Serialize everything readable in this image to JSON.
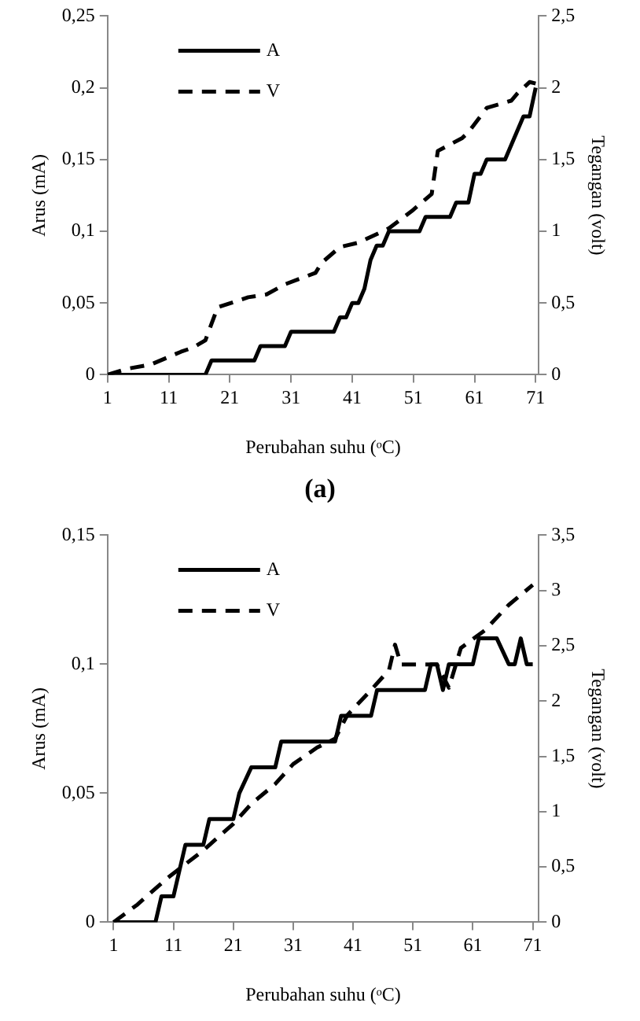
{
  "chart_data": [
    {
      "type": "line",
      "xlabel": "Perubahan suhu (ᵒC)",
      "ylabel": "Arus (mA)",
      "y2label": "Tegangan (volt)",
      "annotations": [
        "(a)"
      ],
      "xlim": [
        1,
        71.5
      ],
      "xticks": [
        1,
        11,
        21,
        31,
        41,
        51,
        61,
        71
      ],
      "ylim": [
        0,
        0.25
      ],
      "yticks": [
        {
          "value": 0,
          "label": "0"
        },
        {
          "value": 0.05,
          "label": "0,05"
        },
        {
          "value": 0.1,
          "label": "0,1"
        },
        {
          "value": 0.15,
          "label": "0,15"
        },
        {
          "value": 0.2,
          "label": "0,2"
        },
        {
          "value": 0.25,
          "label": "0,25"
        }
      ],
      "y2lim": [
        0,
        2.5
      ],
      "y2ticks": [
        {
          "value": 0,
          "label": "0"
        },
        {
          "value": 0.5,
          "label": "0,5"
        },
        {
          "value": 1,
          "label": "1"
        },
        {
          "value": 1.5,
          "label": "1,5"
        },
        {
          "value": 2,
          "label": "2"
        },
        {
          "value": 2.5,
          "label": "2,5"
        }
      ],
      "grid": false,
      "legend": "top left",
      "marker": "none",
      "series": [
        {
          "name": "A",
          "color": "#000000",
          "line_style": "solid",
          "x": [
            1,
            17,
            18,
            25,
            26,
            30,
            31,
            38,
            39,
            40,
            41,
            42,
            43,
            44,
            45,
            46,
            47,
            52,
            53,
            57,
            58,
            60,
            61,
            62,
            63,
            66,
            69,
            70,
            71
          ],
          "values": [
            0,
            0,
            0.01,
            0.01,
            0.02,
            0.02,
            0.03,
            0.03,
            0.04,
            0.04,
            0.05,
            0.05,
            0.06,
            0.08,
            0.09,
            0.09,
            0.1,
            0.1,
            0.11,
            0.11,
            0.12,
            0.12,
            0.14,
            0.14,
            0.15,
            0.15,
            0.18,
            0.18,
            0.2
          ]
        },
        {
          "name": "V",
          "color": "#000000",
          "line_style": "dashed",
          "axis": "y2",
          "x": [
            1,
            4,
            8,
            13,
            15,
            17,
            19,
            24,
            27,
            30,
            35,
            36,
            39,
            42,
            47,
            51,
            54,
            55,
            59,
            60,
            63,
            67,
            68,
            70,
            71
          ],
          "values": [
            0,
            0.04,
            0.07,
            0.16,
            0.19,
            0.24,
            0.47,
            0.54,
            0.56,
            0.63,
            0.71,
            0.78,
            0.89,
            0.92,
            1.02,
            1.15,
            1.26,
            1.56,
            1.65,
            1.69,
            1.86,
            1.91,
            1.96,
            2.04,
            2.03
          ]
        }
      ]
    },
    {
      "type": "line",
      "xlabel": "Perubahan suhu (ᵒC)",
      "ylabel": "Arus (mA)",
      "y2label": "Tegangan (volt)",
      "xlim": [
        0,
        72
      ],
      "xticks": [
        1,
        11,
        21,
        31,
        41,
        51,
        61,
        71
      ],
      "ylim": [
        0,
        0.15
      ],
      "yticks": [
        {
          "value": 0,
          "label": "0"
        },
        {
          "value": 0.05,
          "label": "0,05"
        },
        {
          "value": 0.1,
          "label": "0,1"
        },
        {
          "value": 0.15,
          "label": "0,15"
        }
      ],
      "y2lim": [
        0,
        3.5
      ],
      "y2ticks": [
        {
          "value": 0,
          "label": "0"
        },
        {
          "value": 0.5,
          "label": "0,5"
        },
        {
          "value": 1,
          "label": "1"
        },
        {
          "value": 1.5,
          "label": "1,5"
        },
        {
          "value": 2,
          "label": "2"
        },
        {
          "value": 2.5,
          "label": "2,5"
        },
        {
          "value": 3,
          "label": "3"
        },
        {
          "value": 3.5,
          "label": "3,5"
        }
      ],
      "grid": false,
      "legend": "top left",
      "marker": "none",
      "series": [
        {
          "name": "A",
          "color": "#000000",
          "line_style": "solid",
          "x": [
            1,
            8,
            9,
            11,
            12,
            13,
            14,
            16,
            17,
            21,
            22,
            24,
            28,
            29,
            38,
            39,
            44,
            45,
            53,
            54,
            55,
            56,
            57,
            61,
            62,
            65,
            67,
            68,
            69,
            70,
            71
          ],
          "values": [
            0,
            0,
            0.01,
            0.01,
            0.02,
            0.03,
            0.03,
            0.03,
            0.04,
            0.04,
            0.05,
            0.06,
            0.06,
            0.07,
            0.07,
            0.08,
            0.08,
            0.09,
            0.09,
            0.1,
            0.1,
            0.09,
            0.1,
            0.1,
            0.11,
            0.11,
            0.1,
            0.1,
            0.11,
            0.1,
            0.1
          ]
        },
        {
          "name": "V",
          "color": "#000000",
          "line_style": "dashed",
          "axis": "y2",
          "x": [
            1,
            5,
            10,
            16,
            21,
            24,
            28,
            31,
            35,
            38,
            40,
            44,
            47,
            48,
            49,
            51,
            55,
            57,
            59,
            63,
            67,
            71
          ],
          "values": [
            0,
            0.16,
            0.4,
            0.65,
            0.89,
            1.07,
            1.25,
            1.43,
            1.58,
            1.66,
            1.87,
            2.1,
            2.28,
            2.51,
            2.33,
            2.33,
            2.33,
            2.12,
            2.48,
            2.64,
            2.87,
            3.05
          ]
        }
      ]
    }
  ]
}
